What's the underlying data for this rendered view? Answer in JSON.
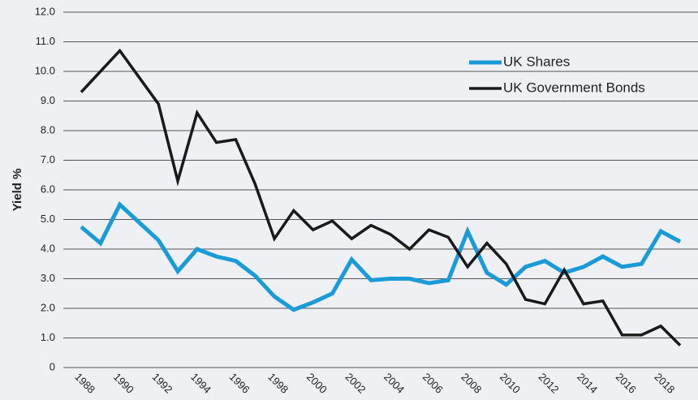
{
  "chart_data": {
    "type": "line",
    "y_label": "Yield %",
    "x": [
      1988,
      1989,
      1990,
      1991,
      1992,
      1993,
      1994,
      1995,
      1996,
      1997,
      1998,
      1999,
      2000,
      2001,
      2002,
      2003,
      2004,
      2005,
      2006,
      2007,
      2008,
      2009,
      2010,
      2011,
      2012,
      2013,
      2014,
      2015,
      2016,
      2017,
      2018,
      2019
    ],
    "series": [
      {
        "name": "UK Shares",
        "color": "#1a9bd7",
        "values": [
          4.75,
          4.2,
          5.5,
          4.9,
          4.3,
          3.25,
          4.0,
          3.75,
          3.6,
          3.1,
          2.4,
          1.95,
          2.2,
          2.5,
          3.65,
          2.95,
          3.0,
          3.0,
          2.85,
          2.95,
          4.6,
          3.2,
          2.8,
          3.4,
          3.6,
          3.2,
          3.4,
          3.75,
          3.4,
          3.5,
          4.6,
          4.25
        ]
      },
      {
        "name": "UK Government Bonds",
        "color": "#1a1a1a",
        "values": [
          9.3,
          10.0,
          10.7,
          9.8,
          8.9,
          6.3,
          8.6,
          7.6,
          7.7,
          6.2,
          4.35,
          5.3,
          4.65,
          4.95,
          4.35,
          4.8,
          4.5,
          4.0,
          4.65,
          4.4,
          3.4,
          4.2,
          3.5,
          2.3,
          2.15,
          3.3,
          2.15,
          2.25,
          1.1,
          1.1,
          1.4,
          0.75
        ]
      }
    ],
    "xlim": [
      1988,
      2019
    ],
    "xticks": [
      1988,
      1990,
      1992,
      1994,
      1996,
      1998,
      2000,
      2002,
      2004,
      2006,
      2008,
      2010,
      2012,
      2014,
      2016,
      2018
    ],
    "ylim": [
      0,
      12
    ],
    "yticks": [
      0,
      {
        "value": 1,
        "label": "1.0"
      },
      {
        "value": 2,
        "label": "2.0"
      },
      {
        "value": 3,
        "label": "3.0"
      },
      {
        "value": 4,
        "label": "4.0"
      },
      {
        "value": 5,
        "label": "5.0"
      },
      {
        "value": 6,
        "label": "6.0"
      },
      {
        "value": 7,
        "label": "7.0"
      },
      {
        "value": 8,
        "label": "8.0"
      },
      {
        "value": 9,
        "label": "9.0"
      },
      {
        "value": 10,
        "label": "10.0"
      },
      {
        "value": 11,
        "label": "11.0"
      },
      {
        "value": 12,
        "label": "12.0"
      }
    ],
    "grid": true,
    "legend": "top-right"
  }
}
